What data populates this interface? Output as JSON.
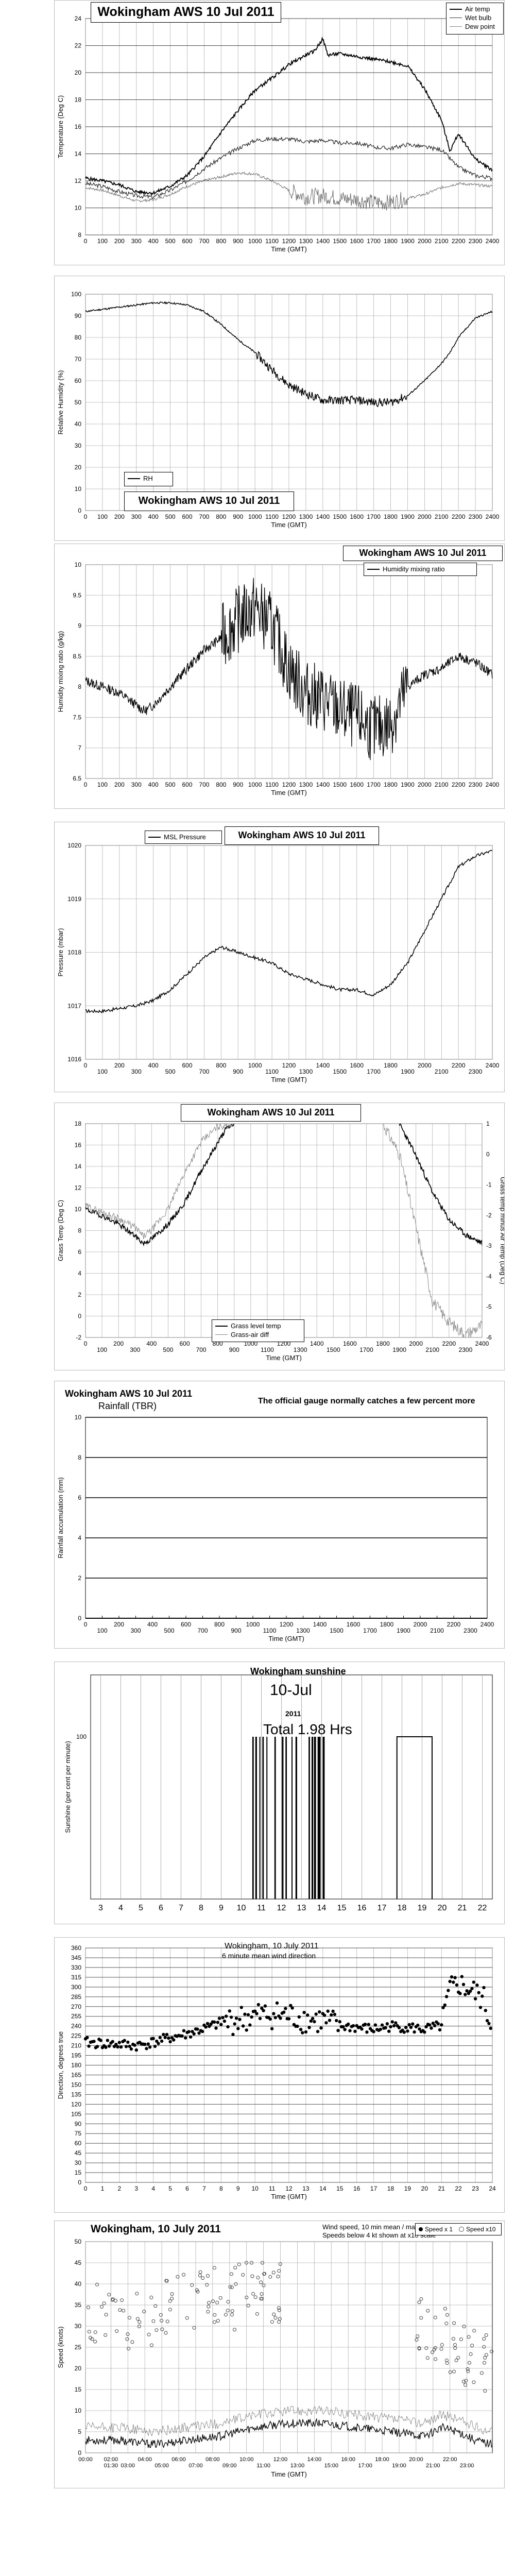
{
  "charts": {
    "temp": {
      "title": "Wokingham AWS 10 Jul 2011",
      "ylabel": "Temperature (Deg C)",
      "xlabel": "Time (GMT)",
      "legend": [
        "Air temp",
        "Wet bulb",
        "Dew point"
      ]
    },
    "rh": {
      "title": "Wokingham AWS 10 Jul 2011",
      "ylabel": "Relative Humidity (%)",
      "xlabel": "Time (GMT)",
      "legend": [
        "RH"
      ]
    },
    "mix": {
      "title": "Wokingham AWS 10 Jul 2011",
      "ylabel": "Humidity mixing ratio (g/kg)",
      "xlabel": "Time (GMT)",
      "legend": [
        "Humidity mixing ratio"
      ]
    },
    "pres": {
      "title": "Wokingham AWS 10 Jul 2011",
      "ylabel": "Pressure (mbar)",
      "xlabel": "Time (GMT)",
      "legend": [
        "MSL Pressure"
      ]
    },
    "grass": {
      "title": "Wokingham AWS 10 Jul 2011",
      "ylabel": "Grass Temp (Deg C)",
      "ylabel2": "Grass temp minus Air Temp (Deg C)",
      "xlabel": "Time (GMT)",
      "legend": [
        "Grass level temp",
        "Grass-air diff"
      ]
    },
    "rain": {
      "title": "Wokingham AWS 10 Jul 2011",
      "subtitle": "Rainfall (TBR)",
      "note": "The official gauge normally catches a few percent more",
      "ylabel": "Rainfall accumulation (mm)",
      "xlabel": "Time (GMT)"
    },
    "sun": {
      "title": "Wokingham sunshine",
      "date": "10-Jul",
      "year": "2011",
      "total": "Total 1.98 Hrs",
      "ylabel": "Sunshine (per cent per minute)"
    },
    "wdir": {
      "title": "Wokingham, 10 July 2011",
      "subtitle": "6 minute mean wind direction",
      "ylabel": "Direction, degrees true",
      "xlabel": "Time (GMT)"
    },
    "wspd": {
      "title": "Wokingham,  10 July 2011",
      "note1": "Wind speed, 10 min mean / max gust",
      "note2": "Speeds below 4 kt shown at x10 scale",
      "ylabel": "Speed (knots)",
      "xlabel": "Time (GMT)",
      "legend": [
        "Speed x 1",
        "Speed x10"
      ]
    }
  },
  "chart_data": [
    {
      "type": "line",
      "title": "Wokingham AWS 10 Jul 2011",
      "xlabel": "Time (GMT)",
      "ylabel": "Temperature (Deg C)",
      "xlim": [
        0,
        2400
      ],
      "ylim": [
        8,
        24
      ],
      "x_ticks": [
        0,
        100,
        200,
        300,
        400,
        500,
        600,
        700,
        800,
        900,
        1000,
        1100,
        1200,
        1300,
        1400,
        1500,
        1600,
        1700,
        1800,
        1900,
        2000,
        2100,
        2200,
        2300,
        2400
      ],
      "y_ticks": [
        8,
        10,
        12,
        14,
        16,
        18,
        20,
        22,
        24
      ],
      "series": [
        {
          "name": "Air temp",
          "x": [
            0,
            100,
            200,
            300,
            400,
            500,
            600,
            700,
            800,
            900,
            1000,
            1100,
            1200,
            1300,
            1350,
            1400,
            1430,
            1500,
            1600,
            1700,
            1800,
            1900,
            2000,
            2100,
            2150,
            2200,
            2300,
            2400
          ],
          "y": [
            12.2,
            12.0,
            11.7,
            11.2,
            11.1,
            11.6,
            12.4,
            13.8,
            15.6,
            17.2,
            18.7,
            19.6,
            20.6,
            21.3,
            21.6,
            22.5,
            21.3,
            21.4,
            21.2,
            21.0,
            20.8,
            20.5,
            18.8,
            16.5,
            14.2,
            15.5,
            13.6,
            12.8
          ]
        },
        {
          "name": "Wet bulb",
          "x": [
            0,
            100,
            200,
            300,
            400,
            500,
            600,
            700,
            800,
            900,
            1000,
            1100,
            1200,
            1300,
            1400,
            1500,
            1600,
            1700,
            1800,
            1900,
            2000,
            2100,
            2200,
            2300,
            2400
          ],
          "y": [
            11.8,
            11.6,
            11.2,
            10.9,
            10.8,
            11.3,
            12.0,
            12.9,
            13.7,
            14.4,
            15.0,
            15.1,
            15.1,
            14.9,
            15.0,
            14.8,
            14.8,
            14.5,
            14.4,
            14.7,
            14.5,
            14.3,
            13.0,
            12.4,
            12.2
          ]
        },
        {
          "name": "Dew point",
          "x": [
            0,
            100,
            200,
            300,
            400,
            500,
            600,
            700,
            800,
            900,
            1000,
            1100,
            1200,
            1300,
            1400,
            1500,
            1600,
            1700,
            1800,
            1900,
            2000,
            2100,
            2200,
            2300,
            2400
          ],
          "y": [
            11.5,
            11.3,
            10.9,
            10.5,
            10.6,
            11.0,
            11.6,
            12.0,
            12.3,
            12.6,
            12.5,
            12.0,
            11.3,
            10.8,
            10.9,
            10.7,
            10.6,
            10.4,
            10.4,
            10.7,
            11.0,
            11.5,
            11.8,
            11.7,
            11.6
          ]
        }
      ]
    },
    {
      "type": "line",
      "title": "Wokingham AWS 10 Jul 2011",
      "xlabel": "Time (GMT)",
      "ylabel": "Relative Humidity (%)",
      "xlim": [
        0,
        2400
      ],
      "ylim": [
        0,
        100
      ],
      "x_ticks": [
        0,
        100,
        200,
        300,
        400,
        500,
        600,
        700,
        800,
        900,
        1000,
        1100,
        1200,
        1300,
        1400,
        1500,
        1600,
        1700,
        1800,
        1900,
        2000,
        2100,
        2200,
        2300,
        2400
      ],
      "y_ticks": [
        0,
        10,
        20,
        30,
        40,
        50,
        60,
        70,
        80,
        90,
        100
      ],
      "series": [
        {
          "name": "RH",
          "x": [
            0,
            100,
            200,
            300,
            400,
            500,
            600,
            700,
            800,
            900,
            1000,
            1100,
            1200,
            1300,
            1400,
            1500,
            1600,
            1700,
            1800,
            1900,
            2000,
            2100,
            2150,
            2200,
            2300,
            2400
          ],
          "y": [
            92,
            93,
            94,
            95,
            96,
            96,
            95,
            92,
            86,
            79,
            73,
            65,
            58,
            54,
            51,
            51,
            51,
            50,
            50,
            53,
            60,
            68,
            73,
            80,
            89,
            92
          ]
        }
      ]
    },
    {
      "type": "line",
      "title": "Wokingham AWS 10 Jul 2011",
      "xlabel": "Time (GMT)",
      "ylabel": "Humidity mixing ratio (g/kg)",
      "xlim": [
        0,
        2400
      ],
      "ylim": [
        6.5,
        10
      ],
      "x_ticks": [
        0,
        100,
        200,
        300,
        400,
        500,
        600,
        700,
        800,
        900,
        1000,
        1100,
        1200,
        1300,
        1400,
        1500,
        1600,
        1700,
        1800,
        1900,
        2000,
        2100,
        2200,
        2300,
        2400
      ],
      "y_ticks": [
        6.5,
        7,
        7.5,
        8,
        8.5,
        9,
        9.5,
        10
      ],
      "series": [
        {
          "name": "Humidity mixing ratio",
          "x": [
            0,
            100,
            200,
            300,
            350,
            400,
            500,
            600,
            700,
            800,
            900,
            1000,
            1100,
            1200,
            1300,
            1400,
            1500,
            1600,
            1700,
            1800,
            1900,
            2000,
            2100,
            2200,
            2300,
            2400
          ],
          "y": [
            8.1,
            8.0,
            7.9,
            7.7,
            7.6,
            7.7,
            8.0,
            8.3,
            8.6,
            8.8,
            9.1,
            9.3,
            9.0,
            8.3,
            7.9,
            7.8,
            7.6,
            7.5,
            7.3,
            7.4,
            8.0,
            8.2,
            8.3,
            8.5,
            8.4,
            8.2
          ]
        }
      ]
    },
    {
      "type": "line",
      "title": "Wokingham AWS 10 Jul 2011",
      "xlabel": "Time (GMT)",
      "ylabel": "Pressure (mbar)",
      "xlim": [
        0,
        2400
      ],
      "ylim": [
        1016,
        1020
      ],
      "x_ticks": [
        0,
        100,
        200,
        300,
        400,
        500,
        600,
        700,
        800,
        900,
        1000,
        1100,
        1200,
        1300,
        1400,
        1500,
        1600,
        1700,
        1800,
        1900,
        2000,
        2100,
        2200,
        2300,
        2400
      ],
      "y_ticks": [
        1016,
        1017,
        1018,
        1019,
        1020
      ],
      "series": [
        {
          "name": "MSL Pressure",
          "x": [
            0,
            100,
            200,
            300,
            400,
            500,
            600,
            700,
            800,
            900,
            1000,
            1100,
            1200,
            1300,
            1400,
            1500,
            1600,
            1700,
            1800,
            1900,
            2000,
            2100,
            2200,
            2300,
            2400
          ],
          "y": [
            1016.9,
            1016.9,
            1016.95,
            1017.0,
            1017.1,
            1017.3,
            1017.6,
            1017.9,
            1018.1,
            1018.0,
            1017.9,
            1017.8,
            1017.6,
            1017.5,
            1017.4,
            1017.3,
            1017.3,
            1017.2,
            1017.4,
            1017.8,
            1018.4,
            1019.0,
            1019.6,
            1019.8,
            1019.9
          ]
        }
      ]
    },
    {
      "type": "line",
      "title": "Wokingham AWS 10 Jul 2011",
      "xlabel": "Time (GMT)",
      "ylabel": "Grass Temp (Deg C)",
      "ylabel2": "Grass temp minus Air Temp (Deg C)",
      "xlim": [
        0,
        2400
      ],
      "ylim": [
        -2,
        18
      ],
      "ylim2": [
        -6,
        1
      ],
      "x_ticks": [
        0,
        100,
        200,
        300,
        400,
        500,
        600,
        700,
        800,
        900,
        1000,
        1100,
        1200,
        1300,
        1400,
        1500,
        1600,
        1700,
        1800,
        1900,
        2000,
        2100,
        2200,
        2300,
        2400
      ],
      "y_ticks": [
        -2,
        0,
        2,
        4,
        6,
        8,
        10,
        12,
        14,
        16,
        18
      ],
      "y2_ticks": [
        -6,
        -5,
        -4,
        -3,
        -2,
        -1,
        0,
        1
      ],
      "series": [
        {
          "name": "Grass level temp",
          "x": [
            0,
            100,
            200,
            300,
            350,
            400,
            500,
            600,
            700,
            800,
            850,
            900,
            1900,
            2000,
            2100,
            2200,
            2300,
            2400
          ],
          "y": [
            10.0,
            9.4,
            8.6,
            7.5,
            6.8,
            7.2,
            8.6,
            10.6,
            13.6,
            16.2,
            17.5,
            18.0,
            18.0,
            15.0,
            11.6,
            9.0,
            7.6,
            6.8
          ]
        },
        {
          "name": "Grass-air diff",
          "x": [
            0,
            100,
            200,
            300,
            350,
            400,
            500,
            600,
            700,
            800,
            900,
            1800,
            1900,
            2000,
            2100,
            2200,
            2300,
            2400
          ],
          "y": [
            -1.7,
            -1.9,
            -2.1,
            -2.4,
            -2.7,
            -2.5,
            -1.8,
            -0.6,
            0.4,
            0.9,
            1.0,
            1.0,
            0.0,
            -2.4,
            -4.8,
            -5.5,
            -5.9,
            -5.6
          ]
        }
      ]
    },
    {
      "type": "line",
      "title": "Wokingham AWS 10 Jul 2011",
      "subtitle": "Rainfall (TBR)",
      "xlabel": "Time (GMT)",
      "ylabel": "Rainfall accumulation (mm)",
      "xlim": [
        0,
        2400
      ],
      "ylim": [
        0,
        10
      ],
      "x_ticks": [
        0,
        100,
        200,
        300,
        400,
        500,
        600,
        700,
        800,
        900,
        1000,
        1100,
        1200,
        1300,
        1400,
        1500,
        1600,
        1700,
        1800,
        1900,
        2000,
        2100,
        2200,
        2300,
        2400
      ],
      "y_ticks": [
        0,
        2,
        4,
        6,
        8,
        10
      ],
      "series": [
        {
          "name": "Rainfall",
          "x": [
            0,
            2400
          ],
          "y": [
            0,
            0
          ]
        }
      ]
    },
    {
      "type": "bar",
      "title": "Wokingham sunshine",
      "subtitle": "10-Jul",
      "ylabel": "Sunshine (per cent per minute)",
      "xlim": [
        2.5,
        22.5
      ],
      "ylim": [
        0,
        100
      ],
      "x_ticks": [
        3,
        4,
        5,
        6,
        7,
        8,
        9,
        10,
        11,
        12,
        13,
        14,
        15,
        16,
        17,
        18,
        19,
        20,
        21,
        22
      ],
      "y_ticks": [
        100
      ],
      "total": "Total 1.98 Hrs",
      "sunny_spells_hours": [
        [
          10.55,
          10.62
        ],
        [
          10.7,
          10.78
        ],
        [
          10.9,
          10.95
        ],
        [
          11.05,
          11.12
        ],
        [
          11.25,
          11.3
        ],
        [
          11.65,
          11.72
        ],
        [
          12.02,
          12.1
        ],
        [
          12.2,
          12.27
        ],
        [
          12.5,
          12.55
        ],
        [
          12.7,
          12.78
        ],
        [
          13.35,
          13.42
        ],
        [
          13.5,
          13.58
        ],
        [
          13.62,
          13.72
        ],
        [
          13.8,
          13.95
        ],
        [
          14.05,
          14.15
        ],
        [
          17.75,
          19.5
        ]
      ]
    },
    {
      "type": "scatter",
      "title": "Wokingham, 10 July 2011",
      "subtitle": "6 minute mean wind direction",
      "xlabel": "Time (GMT)",
      "ylabel": "Direction, degrees true",
      "xlim": [
        0,
        24
      ],
      "ylim": [
        0,
        360
      ],
      "x_ticks": [
        0,
        1,
        2,
        3,
        4,
        5,
        6,
        7,
        8,
        9,
        10,
        11,
        12,
        13,
        14,
        15,
        16,
        17,
        18,
        19,
        20,
        21,
        22,
        23,
        24
      ],
      "y_ticks": [
        0,
        15,
        30,
        45,
        60,
        75,
        90,
        105,
        120,
        135,
        150,
        165,
        180,
        195,
        210,
        225,
        240,
        255,
        270,
        285,
        300,
        315,
        330,
        345,
        360
      ],
      "trend_x": [
        0,
        1,
        2,
        3,
        4,
        5,
        6,
        7,
        8,
        9,
        10,
        11,
        12,
        13,
        14,
        15,
        16,
        17,
        18,
        19,
        20,
        21,
        21.5,
        22,
        23,
        23.5,
        24
      ],
      "trend_y": [
        215,
        213,
        212,
        210,
        215,
        222,
        228,
        236,
        245,
        250,
        255,
        258,
        256,
        250,
        248,
        240,
        238,
        235,
        240,
        238,
        235,
        240,
        295,
        305,
        290,
        280,
        230
      ]
    },
    {
      "type": "line",
      "title": "Wokingham,  10 July 2011",
      "xlabel": "Time (GMT)",
      "ylabel": "Speed (knots)",
      "xlim": [
        0,
        24
      ],
      "ylim": [
        0,
        50
      ],
      "x_ticks": [
        "00:00",
        "01:30",
        "02:00",
        "03:00",
        "04:00",
        "05:00",
        "06:00",
        "07:00",
        "08:00",
        "09:00",
        "10:00",
        "11:00",
        "12:00",
        "13:00",
        "14:00",
        "15:00",
        "16:00",
        "17:00",
        "18:00",
        "19:00",
        "20:00",
        "21:00",
        "22:00",
        "23:00"
      ],
      "y_ticks": [
        0,
        5,
        10,
        15,
        20,
        25,
        30,
        35,
        40,
        45,
        50
      ],
      "series": [
        {
          "name": "Speed x 1",
          "x": [
            0,
            2,
            4,
            6,
            8,
            10,
            12,
            14,
            16,
            18,
            20,
            21,
            22,
            23,
            24
          ],
          "y": [
            3,
            3,
            2,
            3,
            4,
            6,
            7,
            7,
            6,
            5,
            4,
            6,
            5,
            3,
            2
          ]
        },
        {
          "name": "Speed x10",
          "x": [
            0,
            2,
            4,
            6,
            8,
            10,
            20,
            22,
            23,
            24
          ],
          "y": [
            33,
            30,
            32,
            35,
            36,
            38,
            30,
            25,
            22,
            20
          ]
        }
      ]
    }
  ]
}
